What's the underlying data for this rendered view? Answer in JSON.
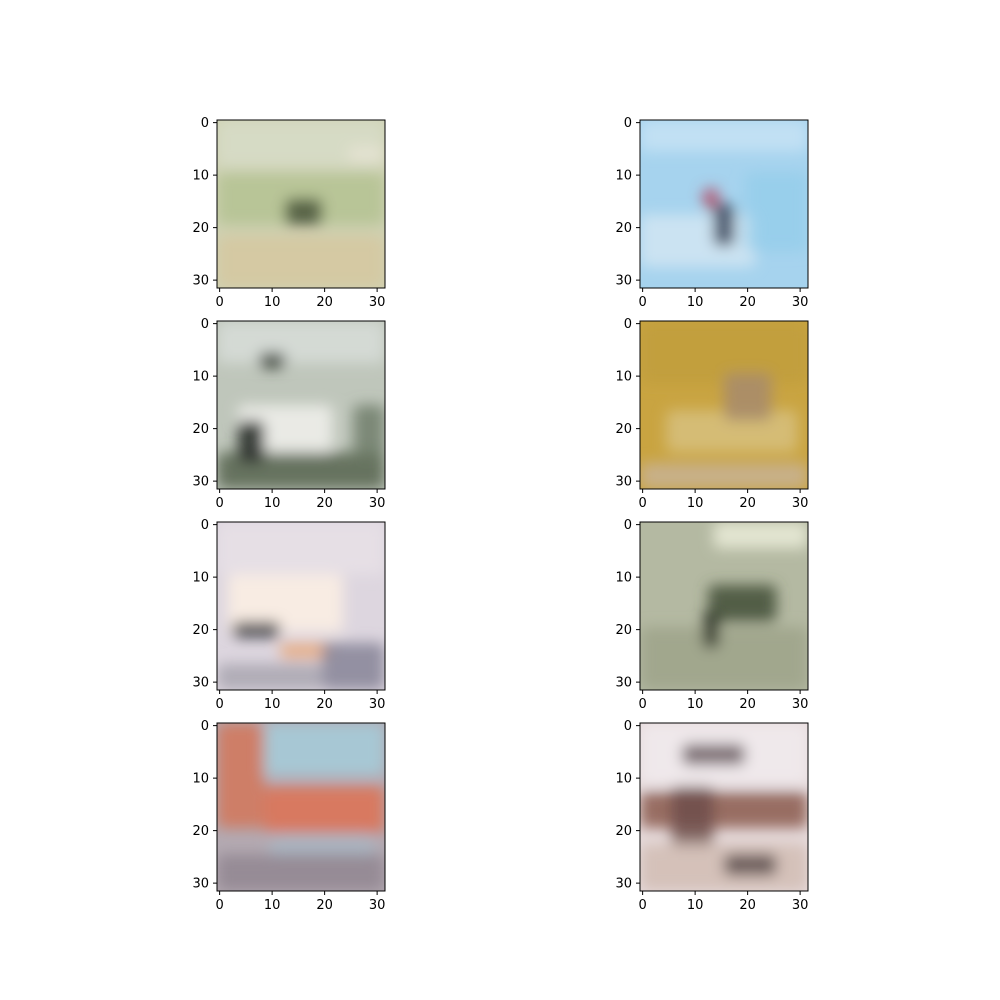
{
  "figure": {
    "tick_labels": [
      "0",
      "10",
      "20",
      "30"
    ],
    "panels": [
      {
        "name": "panel-1",
        "description": "blurry grass field with small dark bird",
        "base": "#cfd2b4",
        "blobs": [
          {
            "c": "#d7dcc7",
            "x": 0,
            "y": 0,
            "w": 32,
            "h": 9,
            "o": 0.9
          },
          {
            "c": "#aebf8a",
            "x": 0,
            "y": 10,
            "w": 32,
            "h": 10,
            "o": 0.7
          },
          {
            "c": "#d6c79f",
            "x": 0,
            "y": 22,
            "w": 32,
            "h": 10,
            "o": 0.8
          },
          {
            "c": "#e7e4d5",
            "x": 25,
            "y": 5,
            "w": 7,
            "h": 3,
            "o": 0.8
          },
          {
            "c": "#4e5a3e",
            "x": 13,
            "y": 15,
            "w": 7,
            "h": 5,
            "o": 0.9
          }
        ]
      },
      {
        "name": "panel-2",
        "description": "light blue sky with thin diagonal bird",
        "base": "#a6d3ee",
        "blobs": [
          {
            "c": "#c8e3f5",
            "x": 0,
            "y": 0,
            "w": 32,
            "h": 6,
            "o": 0.8
          },
          {
            "c": "#dbe9f3",
            "x": 0,
            "y": 18,
            "w": 22,
            "h": 10,
            "o": 0.7
          },
          {
            "c": "#8fcbea",
            "x": 20,
            "y": 10,
            "w": 12,
            "h": 15,
            "o": 0.6
          },
          {
            "c": "#b5526c",
            "x": 12,
            "y": 13,
            "w": 3,
            "h": 4,
            "o": 0.9
          },
          {
            "c": "#3f4c63",
            "x": 14,
            "y": 16,
            "w": 4,
            "h": 8,
            "o": 0.9
          }
        ]
      },
      {
        "name": "panel-3",
        "description": "white vehicle with dark wheels",
        "base": "#bfc6bb",
        "blobs": [
          {
            "c": "#d9dfdb",
            "x": 0,
            "y": 0,
            "w": 32,
            "h": 8,
            "o": 0.8
          },
          {
            "c": "#5c6a55",
            "x": 0,
            "y": 25,
            "w": 32,
            "h": 7,
            "o": 0.9
          },
          {
            "c": "#eeeeea",
            "x": 4,
            "y": 16,
            "w": 18,
            "h": 9,
            "o": 0.9
          },
          {
            "c": "#2e342e",
            "x": 4,
            "y": 19,
            "w": 5,
            "h": 8,
            "o": 0.95
          },
          {
            "c": "#3b423a",
            "x": 8,
            "y": 6,
            "w": 5,
            "h": 3,
            "o": 0.9
          },
          {
            "c": "#6c7965",
            "x": 26,
            "y": 16,
            "w": 6,
            "h": 10,
            "o": 0.8
          }
        ]
      },
      {
        "name": "panel-4",
        "description": "golden ochre background with brown animal",
        "base": "#c9a441",
        "blobs": [
          {
            "c": "#bf9c3a",
            "x": 0,
            "y": 0,
            "w": 32,
            "h": 12,
            "o": 0.7
          },
          {
            "c": "#d8c283",
            "x": 5,
            "y": 17,
            "w": 25,
            "h": 8,
            "o": 0.8
          },
          {
            "c": "#a98c6a",
            "x": 16,
            "y": 10,
            "w": 9,
            "h": 9,
            "o": 0.9
          },
          {
            "c": "#c8b39a",
            "x": 0,
            "y": 27,
            "w": 32,
            "h": 5,
            "o": 0.8
          }
        ]
      },
      {
        "name": "panel-5",
        "description": "pale pink sky with white airplane",
        "base": "#ddd6df",
        "blobs": [
          {
            "c": "#e8e1e7",
            "x": 0,
            "y": 0,
            "w": 32,
            "h": 10,
            "o": 0.8
          },
          {
            "c": "#fbeee3",
            "x": 2,
            "y": 10,
            "w": 22,
            "h": 11,
            "o": 0.9
          },
          {
            "c": "#3c3d44",
            "x": 3,
            "y": 19,
            "w": 9,
            "h": 3,
            "o": 0.9
          },
          {
            "c": "#e9a676",
            "x": 12,
            "y": 23,
            "w": 10,
            "h": 3,
            "o": 0.8
          },
          {
            "c": "#868497",
            "x": 20,
            "y": 23,
            "w": 12,
            "h": 9,
            "o": 0.85
          },
          {
            "c": "#a5a2ac",
            "x": 0,
            "y": 27,
            "w": 20,
            "h": 5,
            "o": 0.8
          }
        ]
      },
      {
        "name": "panel-6",
        "description": "grey-green field with dark grazing animal",
        "base": "#b4b9a2",
        "blobs": [
          {
            "c": "#e8ead6",
            "x": 14,
            "y": 0,
            "w": 18,
            "h": 5,
            "o": 0.9
          },
          {
            "c": "#9da38a",
            "x": 0,
            "y": 20,
            "w": 32,
            "h": 12,
            "o": 0.85
          },
          {
            "c": "#4d5841",
            "x": 13,
            "y": 12,
            "w": 13,
            "h": 7,
            "o": 0.95
          },
          {
            "c": "#2f3528",
            "x": 12,
            "y": 17,
            "w": 3,
            "h": 7,
            "o": 0.9
          }
        ]
      },
      {
        "name": "panel-7",
        "description": "orange-red building with blue sky",
        "base": "#b3a9b1",
        "blobs": [
          {
            "c": "#a5cbd8",
            "x": 8,
            "y": 0,
            "w": 24,
            "h": 10,
            "o": 0.9
          },
          {
            "c": "#d2795e",
            "x": 0,
            "y": 0,
            "w": 9,
            "h": 20,
            "o": 0.9
          },
          {
            "c": "#db7356",
            "x": 9,
            "y": 12,
            "w": 23,
            "h": 9,
            "o": 0.9
          },
          {
            "c": "#a7b8c6",
            "x": 10,
            "y": 21,
            "w": 20,
            "h": 4,
            "o": 0.7
          },
          {
            "c": "#8f848f",
            "x": 0,
            "y": 25,
            "w": 32,
            "h": 7,
            "o": 0.8
          }
        ]
      },
      {
        "name": "panel-8",
        "description": "truck with brown cab on light background",
        "base": "#e7dbdc",
        "blobs": [
          {
            "c": "#f1ecef",
            "x": 0,
            "y": 0,
            "w": 32,
            "h": 12,
            "o": 0.8
          },
          {
            "c": "#6a5c60",
            "x": 8,
            "y": 4,
            "w": 12,
            "h": 4,
            "o": 0.85
          },
          {
            "c": "#8a594c",
            "x": 0,
            "y": 13,
            "w": 32,
            "h": 7,
            "o": 0.85
          },
          {
            "c": "#6d4e48",
            "x": 6,
            "y": 12,
            "w": 8,
            "h": 12,
            "o": 0.8
          },
          {
            "c": "#d3bfb6",
            "x": 0,
            "y": 23,
            "w": 32,
            "h": 9,
            "o": 0.9
          },
          {
            "c": "#5a4a4a",
            "x": 16,
            "y": 25,
            "w": 10,
            "h": 4,
            "o": 0.85
          }
        ]
      }
    ]
  }
}
